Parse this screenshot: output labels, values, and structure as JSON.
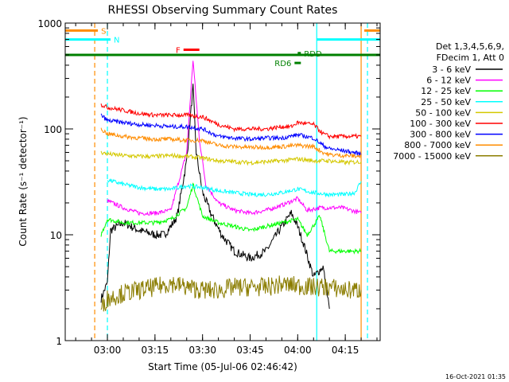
{
  "chart_data": {
    "type": "line",
    "title": "RHESSI Observing Summary Count Rates",
    "xlabel": "Start Time (05-Jul-06 02:46:42)",
    "ylabel": "Count Rate (s⁻¹ detector⁻¹)",
    "y_scale": "log",
    "ylim": [
      1,
      1000
    ],
    "xlim": [
      "02:46:42",
      "04:26:00"
    ],
    "x_ticks": [
      "03:00",
      "03:15",
      "03:30",
      "03:45",
      "04:00",
      "04:15"
    ],
    "y_ticks": [
      "1",
      "10",
      "100",
      "1000"
    ],
    "legend": {
      "position": "right",
      "header": [
        "Det 1,3,4,5,6,9,",
        "FDecim 1, Att 0"
      ]
    },
    "series": [
      {
        "name": "3 - 6 keV",
        "color": "#000000",
        "points": [
          [
            "02:58",
            2.5
          ],
          [
            "03:00",
            3.5
          ],
          [
            "03:01",
            11
          ],
          [
            "03:05",
            13
          ],
          [
            "03:10",
            11
          ],
          [
            "03:15",
            10
          ],
          [
            "03:18",
            10
          ],
          [
            "03:20",
            12
          ],
          [
            "03:22",
            15
          ],
          [
            "03:25",
            50
          ],
          [
            "03:27",
            250
          ],
          [
            "03:28",
            60
          ],
          [
            "03:30",
            25
          ],
          [
            "03:33",
            15
          ],
          [
            "03:36",
            10
          ],
          [
            "03:40",
            7
          ],
          [
            "03:45",
            6
          ],
          [
            "03:50",
            7
          ],
          [
            "03:55",
            12
          ],
          [
            "03:58",
            16
          ],
          [
            "04:00",
            12
          ],
          [
            "04:02",
            8
          ],
          [
            "04:05",
            4
          ],
          [
            "04:08",
            5
          ],
          [
            "04:10",
            2
          ]
        ]
      },
      {
        "name": "6 - 12 keV",
        "color": "#ff00ff",
        "points": [
          [
            "03:00",
            21
          ],
          [
            "03:05",
            18
          ],
          [
            "03:10",
            16
          ],
          [
            "03:15",
            16
          ],
          [
            "03:20",
            17
          ],
          [
            "03:25",
            60
          ],
          [
            "03:27",
            450
          ],
          [
            "03:29",
            80
          ],
          [
            "03:31",
            30
          ],
          [
            "03:35",
            20
          ],
          [
            "03:40",
            17
          ],
          [
            "03:45",
            16
          ],
          [
            "03:50",
            17
          ],
          [
            "03:55",
            19
          ],
          [
            "04:00",
            22
          ],
          [
            "04:03",
            17
          ],
          [
            "04:07",
            18
          ],
          [
            "04:10",
            18
          ],
          [
            "04:14",
            18
          ],
          [
            "04:17",
            17
          ],
          [
            "04:20",
            16
          ]
        ]
      },
      {
        "name": "12 - 25 keV",
        "color": "#00ff00",
        "points": [
          [
            "02:58",
            10
          ],
          [
            "03:00",
            14
          ],
          [
            "03:05",
            13
          ],
          [
            "03:10",
            13
          ],
          [
            "03:15",
            13
          ],
          [
            "03:20",
            14
          ],
          [
            "03:25",
            18
          ],
          [
            "03:27",
            30
          ],
          [
            "03:30",
            15
          ],
          [
            "03:35",
            13
          ],
          [
            "03:40",
            12
          ],
          [
            "03:45",
            11
          ],
          [
            "03:50",
            12
          ],
          [
            "03:55",
            13
          ],
          [
            "04:00",
            14
          ],
          [
            "04:03",
            10
          ],
          [
            "04:07",
            15
          ],
          [
            "04:10",
            7
          ],
          [
            "04:14",
            7
          ],
          [
            "04:18",
            7
          ],
          [
            "04:20",
            7
          ]
        ]
      },
      {
        "name": "25 - 50 keV",
        "color": "#00ffff",
        "points": [
          [
            "03:00",
            33
          ],
          [
            "03:05",
            30
          ],
          [
            "03:10",
            28
          ],
          [
            "03:15",
            27
          ],
          [
            "03:20",
            27
          ],
          [
            "03:25",
            29
          ],
          [
            "03:30",
            28
          ],
          [
            "03:35",
            26
          ],
          [
            "03:40",
            25
          ],
          [
            "03:45",
            24
          ],
          [
            "03:50",
            24
          ],
          [
            "03:55",
            25
          ],
          [
            "04:00",
            27
          ],
          [
            "04:05",
            25
          ],
          [
            "04:10",
            24
          ],
          [
            "04:15",
            24
          ],
          [
            "04:18",
            25
          ],
          [
            "04:20",
            32
          ]
        ]
      },
      {
        "name": "50 - 100 keV",
        "color": "#d4c800",
        "points": [
          [
            "02:58",
            60
          ],
          [
            "03:00",
            58
          ],
          [
            "03:05",
            56
          ],
          [
            "03:10",
            55
          ],
          [
            "03:15",
            55
          ],
          [
            "03:20",
            56
          ],
          [
            "03:25",
            55
          ],
          [
            "03:30",
            53
          ],
          [
            "03:35",
            50
          ],
          [
            "03:40",
            49
          ],
          [
            "03:45",
            48
          ],
          [
            "03:50",
            49
          ],
          [
            "03:55",
            50
          ],
          [
            "04:00",
            52
          ],
          [
            "04:05",
            50
          ],
          [
            "04:10",
            50
          ],
          [
            "04:15",
            48
          ],
          [
            "04:20",
            49
          ]
        ]
      },
      {
        "name": "100 - 300 keV",
        "color": "#ff0000",
        "points": [
          [
            "02:58",
            170
          ],
          [
            "03:00",
            160
          ],
          [
            "03:05",
            150
          ],
          [
            "03:10",
            140
          ],
          [
            "03:15",
            135
          ],
          [
            "03:20",
            135
          ],
          [
            "03:25",
            135
          ],
          [
            "03:30",
            130
          ],
          [
            "03:35",
            110
          ],
          [
            "03:40",
            100
          ],
          [
            "03:45",
            100
          ],
          [
            "03:50",
            100
          ],
          [
            "03:55",
            105
          ],
          [
            "03:58",
            105
          ],
          [
            "04:00",
            115
          ],
          [
            "04:05",
            110
          ],
          [
            "04:08",
            90
          ],
          [
            "04:10",
            85
          ],
          [
            "04:15",
            85
          ],
          [
            "04:20",
            85
          ]
        ]
      },
      {
        "name": "300 - 800 keV",
        "color": "#0000ff",
        "points": [
          [
            "02:58",
            135
          ],
          [
            "03:00",
            120
          ],
          [
            "03:05",
            115
          ],
          [
            "03:10",
            110
          ],
          [
            "03:15",
            108
          ],
          [
            "03:20",
            105
          ],
          [
            "03:25",
            105
          ],
          [
            "03:30",
            100
          ],
          [
            "03:35",
            85
          ],
          [
            "03:40",
            82
          ],
          [
            "03:45",
            80
          ],
          [
            "03:50",
            82
          ],
          [
            "03:55",
            82
          ],
          [
            "04:00",
            88
          ],
          [
            "04:05",
            82
          ],
          [
            "04:08",
            70
          ],
          [
            "04:10",
            65
          ],
          [
            "04:15",
            62
          ],
          [
            "04:20",
            58
          ]
        ]
      },
      {
        "name": "800 - 7000 keV",
        "color": "#ff8c00",
        "points": [
          [
            "02:58",
            100
          ],
          [
            "03:00",
            90
          ],
          [
            "03:05",
            85
          ],
          [
            "03:10",
            82
          ],
          [
            "03:15",
            80
          ],
          [
            "03:20",
            80
          ],
          [
            "03:25",
            78
          ],
          [
            "03:30",
            78
          ],
          [
            "03:35",
            70
          ],
          [
            "03:40",
            68
          ],
          [
            "03:45",
            67
          ],
          [
            "03:50",
            67
          ],
          [
            "03:55",
            68
          ],
          [
            "04:00",
            70
          ],
          [
            "04:05",
            68
          ],
          [
            "04:08",
            60
          ],
          [
            "04:10",
            57
          ],
          [
            "04:15",
            56
          ],
          [
            "04:20",
            55
          ]
        ]
      },
      {
        "name": "7000 - 15000 keV",
        "color": "#8b7d00",
        "points": [
          [
            "02:58",
            2
          ],
          [
            "03:00",
            2.5
          ],
          [
            "03:05",
            2.8
          ],
          [
            "03:10",
            3
          ],
          [
            "03:15",
            3.2
          ],
          [
            "03:20",
            3.5
          ],
          [
            "03:25",
            3.2
          ],
          [
            "03:30",
            3
          ],
          [
            "03:35",
            3
          ],
          [
            "03:40",
            3.2
          ],
          [
            "03:45",
            3.2
          ],
          [
            "03:50",
            3.2
          ],
          [
            "03:55",
            3.4
          ],
          [
            "04:00",
            3.3
          ],
          [
            "04:05",
            3.2
          ],
          [
            "04:10",
            3.2
          ],
          [
            "04:15",
            3
          ],
          [
            "04:20",
            3
          ]
        ]
      }
    ],
    "annotations": [
      {
        "label": "S",
        "color": "#ff8c00",
        "x_range": [
          "02:46:42",
          "02:57"
        ],
        "y": 850
      },
      {
        "label": "N",
        "color": "#00ffff",
        "x_range": [
          "02:46:42",
          "03:01"
        ],
        "y": 700
      },
      {
        "label": "F",
        "color": "#ff0000",
        "x_range": [
          "03:24",
          "03:29"
        ],
        "y": 560
      },
      {
        "label": "RDD",
        "color": "#008000",
        "x_range": [
          "04:00",
          "04:01"
        ],
        "y": 520
      },
      {
        "label": "RD6",
        "color": "#008000",
        "x_range": [
          "03:59",
          "04:01"
        ],
        "y": 420
      }
    ],
    "night_lines": [
      {
        "color": "#ff8c00",
        "style": "dashed",
        "x": "02:56"
      },
      {
        "color": "#00ffff",
        "style": "dashed",
        "x": "03:00"
      },
      {
        "color": "#00ffff",
        "style": "solid",
        "x": "04:06"
      },
      {
        "color": "#ff8c00",
        "style": "solid",
        "x": "04:20"
      },
      {
        "color": "#00ffff",
        "style": "dashed",
        "x": "04:22"
      }
    ],
    "spectral_bar": {
      "color": "#008000",
      "y": 500
    }
  },
  "timestamp": "16-Oct-2021 01:35"
}
